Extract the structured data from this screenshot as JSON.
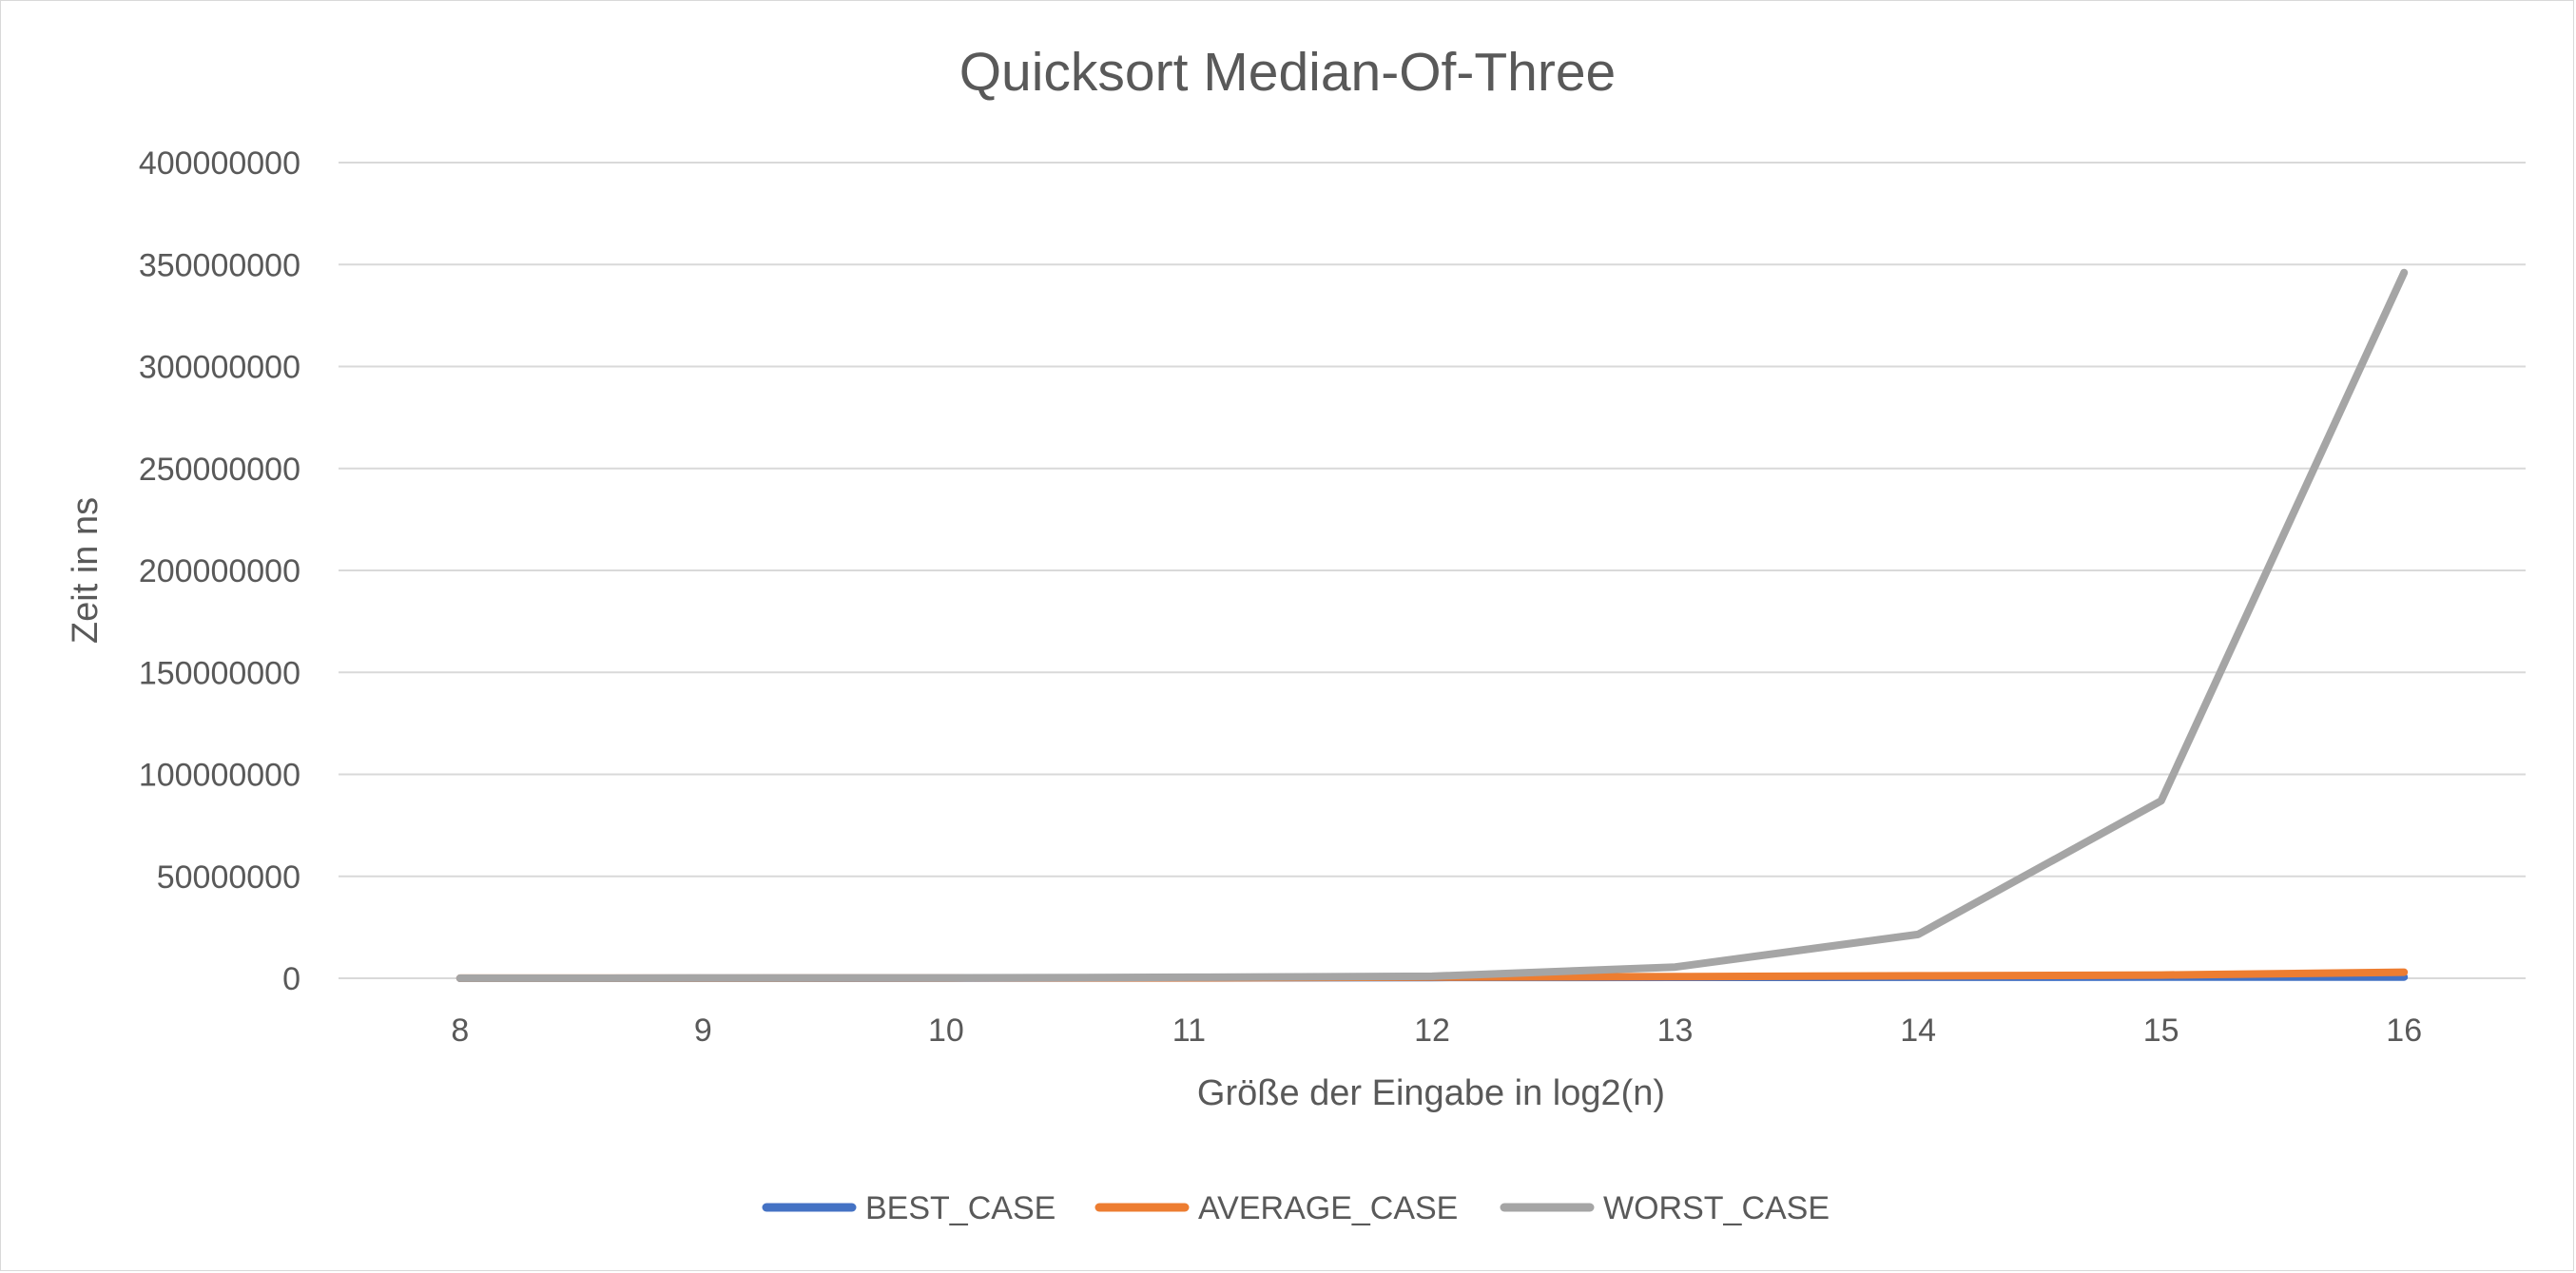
{
  "chart_data": {
    "type": "line",
    "title": "Quicksort Median-Of-Three",
    "xlabel": "Größe der Eingabe in log2(n)",
    "ylabel": "Zeit in ns",
    "categories": [
      "8",
      "9",
      "10",
      "11",
      "12",
      "13",
      "14",
      "15",
      "16"
    ],
    "ylim": [
      0,
      400000000
    ],
    "yticks": [
      "0",
      "50000000",
      "100000000",
      "150000000",
      "200000000",
      "250000000",
      "300000000",
      "350000000",
      "400000000"
    ],
    "grid": true,
    "legend_position": "bottom",
    "series": [
      {
        "name": "BEST_CASE",
        "color": "#4472C4",
        "values": [
          20000,
          40000,
          80000,
          170000,
          350000,
          450000,
          500000,
          550000,
          600000
        ]
      },
      {
        "name": "AVERAGE_CASE",
        "color": "#ED7D31",
        "values": [
          30000,
          60000,
          120000,
          250000,
          550000,
          800000,
          1200000,
          1600000,
          3000000
        ]
      },
      {
        "name": "WORST_CASE",
        "color": "#A5A5A5",
        "values": [
          50000,
          100000,
          200000,
          500000,
          1000000,
          5500000,
          21500000,
          87000000,
          346000000
        ]
      }
    ]
  }
}
